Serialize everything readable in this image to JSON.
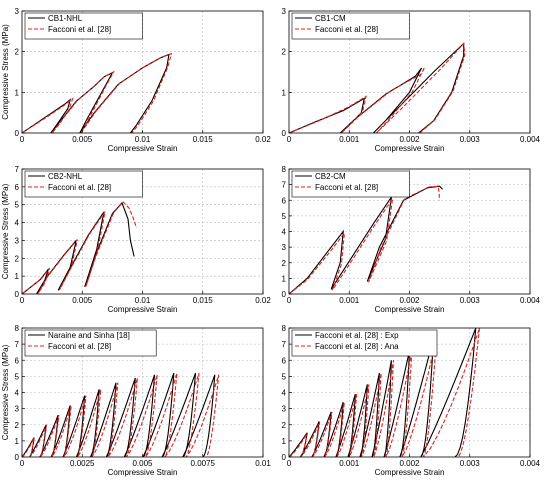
{
  "chart_data": [
    {
      "type": "line",
      "legend_position": "top-left",
      "xlabel": "Compressive Strain",
      "ylabel": "Compressive Stress (MPa)",
      "xlim": [
        0,
        0.02
      ],
      "ylim": [
        0,
        3
      ],
      "xticks": [
        0,
        0.005,
        0.01,
        0.015,
        0.02
      ],
      "xtick_labels": [
        "0",
        "0.005",
        "0.01",
        "0.015",
        "0.02"
      ],
      "yticks": [
        0,
        1,
        2,
        3
      ],
      "ytick_labels": [
        "0",
        "1",
        "2",
        "3"
      ],
      "grid": true,
      "series": [
        {
          "name": "CB1-NHL",
          "color": "#000000",
          "style": "solid",
          "x": [
            0,
            0.002,
            0.0035,
            0.004,
            0.0038,
            0.003,
            0.0024,
            0.0032,
            0.0045,
            0.006,
            0.0068,
            0.0075,
            0.0068,
            0.0055,
            0.0048,
            0.006,
            0.008,
            0.01,
            0.0115,
            0.0122,
            0.012,
            0.0108,
            0.0095,
            0.009
          ],
          "y": [
            0,
            0.4,
            0.7,
            0.82,
            0.6,
            0.25,
            0.0,
            0.3,
            0.78,
            1.15,
            1.38,
            1.48,
            1.1,
            0.4,
            0.0,
            0.5,
            1.2,
            1.6,
            1.85,
            1.93,
            1.6,
            0.8,
            0.2,
            0.0
          ]
        },
        {
          "name": "Facconi et al. [28]",
          "color": "#e02020",
          "style": "dashed",
          "x": [
            0,
            0.002,
            0.0035,
            0.0042,
            0.0039,
            0.0031,
            0.0025,
            0.0033,
            0.0046,
            0.0061,
            0.0069,
            0.0076,
            0.0069,
            0.0056,
            0.0049,
            0.0061,
            0.0081,
            0.0101,
            0.0116,
            0.0124,
            0.0121,
            0.0109,
            0.0096,
            0.0091
          ],
          "y": [
            0,
            0.38,
            0.68,
            0.84,
            0.58,
            0.22,
            0.0,
            0.32,
            0.8,
            1.18,
            1.4,
            1.5,
            1.12,
            0.38,
            0.0,
            0.52,
            1.22,
            1.62,
            1.87,
            1.95,
            1.62,
            0.78,
            0.18,
            0.0
          ]
        }
      ]
    },
    {
      "type": "line",
      "legend_position": "top-left",
      "xlabel": "Compressive Strain",
      "ylabel": "",
      "xlim": [
        0,
        0.004
      ],
      "ylim": [
        0,
        3
      ],
      "xticks": [
        0,
        0.001,
        0.002,
        0.003,
        0.004
      ],
      "xtick_labels": [
        "0",
        "0.001",
        "0.002",
        "0.003",
        "0.004"
      ],
      "yticks": [
        0,
        1,
        2,
        3
      ],
      "ytick_labels": [
        "0",
        "1",
        "2",
        "3"
      ],
      "grid": true,
      "series": [
        {
          "name": "CB1-CM",
          "color": "#000000",
          "style": "solid",
          "x": [
            0,
            0.0004,
            0.0009,
            0.00125,
            0.0012,
            0.001,
            0.00085,
            0.0011,
            0.0016,
            0.0021,
            0.0022,
            0.002,
            0.0016,
            0.0014,
            0.0018,
            0.0024,
            0.0029,
            0.0029,
            0.0027,
            0.0024,
            0.00215
          ],
          "y": [
            0,
            0.25,
            0.55,
            0.85,
            0.5,
            0.2,
            0.0,
            0.35,
            0.95,
            1.4,
            1.6,
            1.0,
            0.3,
            0.0,
            0.6,
            1.5,
            2.2,
            1.9,
            1.0,
            0.3,
            0.0
          ]
        },
        {
          "name": "Facconi et al. [28]",
          "color": "#e02020",
          "style": "dashed",
          "x": [
            0,
            0.0005,
            0.001,
            0.00128,
            0.00122,
            0.00102,
            0.00087,
            0.00115,
            0.0017,
            0.0022,
            0.00225,
            0.00205,
            0.00165,
            0.00145,
            0.0019,
            0.0025,
            0.0029,
            0.00292,
            0.00272,
            0.00242,
            0.00217
          ],
          "y": [
            0,
            0.3,
            0.65,
            0.9,
            0.52,
            0.22,
            0.0,
            0.4,
            1.05,
            1.45,
            1.62,
            1.02,
            0.32,
            0.0,
            0.65,
            1.55,
            2.2,
            1.92,
            1.02,
            0.32,
            0.0
          ]
        }
      ]
    },
    {
      "type": "line",
      "legend_position": "top-left",
      "xlabel": "Compressive Strain",
      "ylabel": "Compressive Stress (MPa)",
      "xlim": [
        0,
        0.02
      ],
      "ylim": [
        0,
        7
      ],
      "xticks": [
        0,
        0.005,
        0.01,
        0.015,
        0.02
      ],
      "xtick_labels": [
        "0",
        "0.005",
        "0.01",
        "0.015",
        "0.02"
      ],
      "yticks": [
        0,
        1,
        2,
        3,
        4,
        5,
        6,
        7
      ],
      "ytick_labels": [
        "0",
        "1",
        "2",
        "3",
        "4",
        "5",
        "6",
        "7"
      ],
      "grid": true,
      "series": [
        {
          "name": "CB2-NHL",
          "color": "#000000",
          "style": "solid",
          "x": [
            0,
            0.0015,
            0.0022,
            0.0018,
            0.0012,
            0.002,
            0.0035,
            0.0045,
            0.004,
            0.003,
            0.0038,
            0.0055,
            0.0068,
            0.0062,
            0.0052,
            0.006,
            0.0075,
            0.0083,
            0.0088,
            0.009,
            0.0093
          ],
          "y": [
            0,
            0.8,
            1.4,
            0.6,
            0.0,
            0.9,
            2.2,
            3.0,
            1.5,
            0.2,
            1.2,
            3.3,
            4.6,
            2.5,
            0.4,
            2.0,
            4.5,
            5.1,
            4.2,
            3.0,
            2.1
          ]
        },
        {
          "name": "Facconi et al. [28]",
          "color": "#e02020",
          "style": "dashed",
          "x": [
            0,
            0.0016,
            0.0023,
            0.0019,
            0.0013,
            0.0021,
            0.0036,
            0.0046,
            0.0041,
            0.0031,
            0.0039,
            0.0056,
            0.0069,
            0.0063,
            0.0053,
            0.0061,
            0.0076,
            0.0084,
            0.0089,
            0.0092,
            0.0095
          ],
          "y": [
            0,
            0.85,
            1.45,
            0.62,
            0.0,
            0.95,
            2.25,
            3.05,
            1.52,
            0.22,
            1.25,
            3.35,
            4.62,
            2.52,
            0.42,
            2.05,
            4.55,
            5.15,
            4.8,
            4.3,
            3.7
          ]
        }
      ]
    },
    {
      "type": "line",
      "legend_position": "top-left",
      "xlabel": "Compressive Strain",
      "ylabel": "",
      "xlim": [
        0,
        0.004
      ],
      "ylim": [
        0,
        8
      ],
      "xticks": [
        0,
        0.001,
        0.002,
        0.003,
        0.004
      ],
      "xtick_labels": [
        "0",
        "0.001",
        "0.002",
        "0.003",
        "0.004"
      ],
      "yticks": [
        0,
        1,
        2,
        3,
        4,
        5,
        6,
        7,
        8
      ],
      "ytick_labels": [
        "0",
        "1",
        "2",
        "3",
        "4",
        "5",
        "6",
        "7",
        "8"
      ],
      "grid": true,
      "series": [
        {
          "name": "CB2-CM",
          "color": "#000000",
          "style": "solid",
          "x": [
            0,
            0.0003,
            0.0007,
            0.0009,
            0.00085,
            0.0007,
            0.0009,
            0.0014,
            0.0017,
            0.0016,
            0.0013,
            0.0015,
            0.0019,
            0.0023,
            0.0025,
            0.00255
          ],
          "y": [
            0,
            1.0,
            3.0,
            4.0,
            2.0,
            0.3,
            1.5,
            4.5,
            6.2,
            3.5,
            0.8,
            3.0,
            6.0,
            6.8,
            6.9,
            6.7
          ]
        },
        {
          "name": "Facconi et al. [28]",
          "color": "#e02020",
          "style": "dashed",
          "x": [
            0,
            0.0003,
            0.0007,
            0.00092,
            0.00087,
            0.00072,
            0.00092,
            0.00142,
            0.00172,
            0.00162,
            0.00132,
            0.00152,
            0.00192,
            0.00232,
            0.00248,
            0.0025
          ],
          "y": [
            0,
            0.9,
            2.8,
            3.9,
            1.9,
            0.25,
            1.4,
            4.4,
            6.1,
            3.4,
            0.75,
            2.9,
            6.1,
            6.85,
            6.9,
            6.0
          ]
        }
      ]
    },
    {
      "type": "line",
      "legend_position": "top-left",
      "xlabel": "Compressive Strain",
      "ylabel": "Compressive Stress (MPa)",
      "xlim": [
        0,
        0.01
      ],
      "ylim": [
        0,
        8
      ],
      "xticks": [
        0,
        0.0025,
        0.005,
        0.0075,
        0.01
      ],
      "xtick_labels": [
        "0",
        "0.0025",
        "0.005",
        "0.0075",
        "0.01"
      ],
      "yticks": [
        0,
        1,
        2,
        3,
        4,
        5,
        6,
        7,
        8
      ],
      "ytick_labels": [
        "0",
        "1",
        "2",
        "3",
        "4",
        "5",
        "6",
        "7",
        "8"
      ],
      "grid": true,
      "cycle_peaks_x": [
        0.0005,
        0.001,
        0.0015,
        0.002,
        0.0026,
        0.0032,
        0.0039,
        0.0047,
        0.0055,
        0.0063,
        0.0072,
        0.008
      ],
      "cycle_peaks_y": [
        1.2,
        2.0,
        2.6,
        3.2,
        3.8,
        4.2,
        4.6,
        4.9,
        5.1,
        5.2,
        5.2,
        5.1
      ],
      "series": [
        {
          "name": "Naraine and Sinha [18]",
          "color": "#000000",
          "style": "solid"
        },
        {
          "name": "Facconi et al. [28]",
          "color": "#e02020",
          "style": "dashed"
        }
      ]
    },
    {
      "type": "line",
      "legend_position": "top-left",
      "xlabel": "Compressive Strain",
      "ylabel": "",
      "xlim": [
        0,
        0.004
      ],
      "ylim": [
        0,
        8
      ],
      "xticks": [
        0,
        0.001,
        0.002,
        0.003,
        0.004
      ],
      "xtick_labels": [
        "0",
        "0.001",
        "0.002",
        "0.003",
        "0.004"
      ],
      "yticks": [
        0,
        1,
        2,
        3,
        4,
        5,
        6,
        7,
        8
      ],
      "ytick_labels": [
        "0",
        "1",
        "2",
        "3",
        "4",
        "5",
        "6",
        "7",
        "8"
      ],
      "grid": true,
      "cycle_peaks_x": [
        0.0003,
        0.0005,
        0.0007,
        0.0009,
        0.0011,
        0.0013,
        0.0015,
        0.0017,
        0.002,
        0.0024,
        0.0031
      ],
      "cycle_peaks_y": [
        1.5,
        2.2,
        2.8,
        3.4,
        3.9,
        4.5,
        5.2,
        6.0,
        6.6,
        7.4,
        8.0
      ],
      "series": [
        {
          "name": "Facconi et al. [28] : Exp",
          "color": "#000000",
          "style": "solid"
        },
        {
          "name": "Facconi et al. [28] : Ana",
          "color": "#e02020",
          "style": "dashed"
        }
      ]
    }
  ]
}
